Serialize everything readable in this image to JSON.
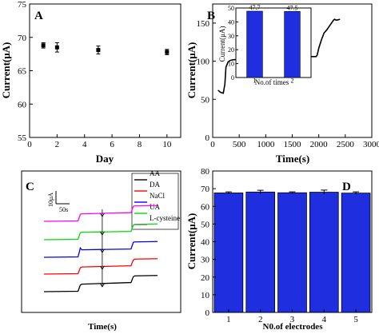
{
  "colors": {
    "axis": "#000000",
    "bar_fill": "#1f2fe0",
    "bar_stroke": "#000000",
    "panel_b_line": "#000000"
  },
  "chart_data": [
    {
      "panel": "A",
      "type": "scatter",
      "xlabel": "Day",
      "ylabel": "Current(μA)",
      "xlim": [
        0,
        11
      ],
      "ylim": [
        55,
        75
      ],
      "xticks": [
        0,
        2,
        4,
        6,
        8,
        10
      ],
      "yticks": [
        55,
        60,
        65,
        70,
        75
      ],
      "x": [
        1,
        2,
        5,
        10
      ],
      "y": [
        68.8,
        68.5,
        68.1,
        67.8
      ],
      "error": [
        0.4,
        0.7,
        0.6,
        0.4
      ]
    },
    {
      "panel": "B",
      "type": "line",
      "xlabel": "Time(s)",
      "ylabel": "Current(μA)",
      "xlim": [
        0,
        3000
      ],
      "ylim": [
        0,
        175
      ],
      "xticks": [
        0,
        500,
        1000,
        1500,
        2000,
        2500,
        3000
      ],
      "yticks": [
        0,
        50,
        100,
        150
      ],
      "x": [
        100,
        150,
        200,
        230,
        250,
        290,
        330,
        400,
        600,
        800,
        1000,
        1200,
        1400,
        1600,
        1800,
        1950,
        1970,
        2000,
        2050,
        2100,
        2150,
        2200,
        2250,
        2280,
        2300,
        2320,
        2350,
        2400
      ],
      "y": [
        62,
        59,
        58,
        70,
        92,
        99,
        101,
        102,
        102,
        103,
        103,
        104,
        104,
        105,
        106,
        106,
        108,
        117,
        128,
        137,
        141,
        146,
        151,
        154,
        155,
        154,
        154,
        155
      ],
      "inset": {
        "type": "bar",
        "xlabel": "No.of times",
        "ylabel": "Current(μA)",
        "categories": [
          "1",
          "2"
        ],
        "values": [
          47.7,
          47.5
        ],
        "data_labels": [
          "47.7",
          "47.5"
        ],
        "ylim": [
          0,
          50
        ],
        "yticks": [
          0,
          10,
          20,
          30,
          40,
          50
        ]
      }
    },
    {
      "panel": "C",
      "type": "line",
      "xlabel": "Time(s)",
      "ylabel": "",
      "scale_bar": {
        "current": "10μA",
        "time": "50s"
      },
      "series": [
        {
          "name": "AA",
          "color": "#000000",
          "x": [
            0,
            45,
            48,
            50,
            115,
            118,
            120,
            150
          ],
          "y": [
            0,
            0.2,
            3.2,
            3.6,
            4.4,
            7.2,
            7.6,
            7.8
          ]
        },
        {
          "name": "DA",
          "color": "#ff0000",
          "x": [
            0,
            45,
            48,
            50,
            115,
            118,
            120,
            150
          ],
          "y": [
            0,
            0.2,
            3.0,
            3.4,
            4.0,
            6.8,
            7.2,
            7.4
          ]
        },
        {
          "name": "NaCl",
          "color": "#0000ff",
          "x": [
            0,
            45,
            48,
            50,
            115,
            118,
            120,
            150
          ],
          "y": [
            0,
            0.2,
            4.5,
            3.6,
            4.0,
            7.2,
            7.4,
            7.6
          ]
        },
        {
          "name": "UA",
          "color": "#00dd00",
          "x": [
            0,
            45,
            48,
            50,
            115,
            118,
            120,
            150
          ],
          "y": [
            0,
            0.2,
            3.4,
            3.6,
            4.0,
            7.0,
            7.4,
            7.6
          ]
        },
        {
          "name": "L-cysteine",
          "color": "#ff00ff",
          "x": [
            0,
            45,
            48,
            50,
            115,
            118,
            120,
            150
          ],
          "y": [
            0,
            0.2,
            3.4,
            3.6,
            4.2,
            7.2,
            7.4,
            7.6
          ]
        }
      ],
      "arrow_times": [
        77
      ]
    },
    {
      "panel": "D",
      "type": "bar",
      "xlabel": "N0.of electrodes",
      "ylabel": "Current(μA)",
      "categories": [
        "1",
        "2",
        "3",
        "4",
        "5"
      ],
      "values": [
        67.6,
        68.1,
        67.7,
        68.0,
        67.5
      ],
      "error": [
        0.6,
        1.0,
        0.5,
        1.2,
        0.7
      ],
      "ylim": [
        0,
        80
      ],
      "yticks": [
        0,
        10,
        20,
        30,
        40,
        50,
        60,
        70,
        80
      ]
    }
  ]
}
